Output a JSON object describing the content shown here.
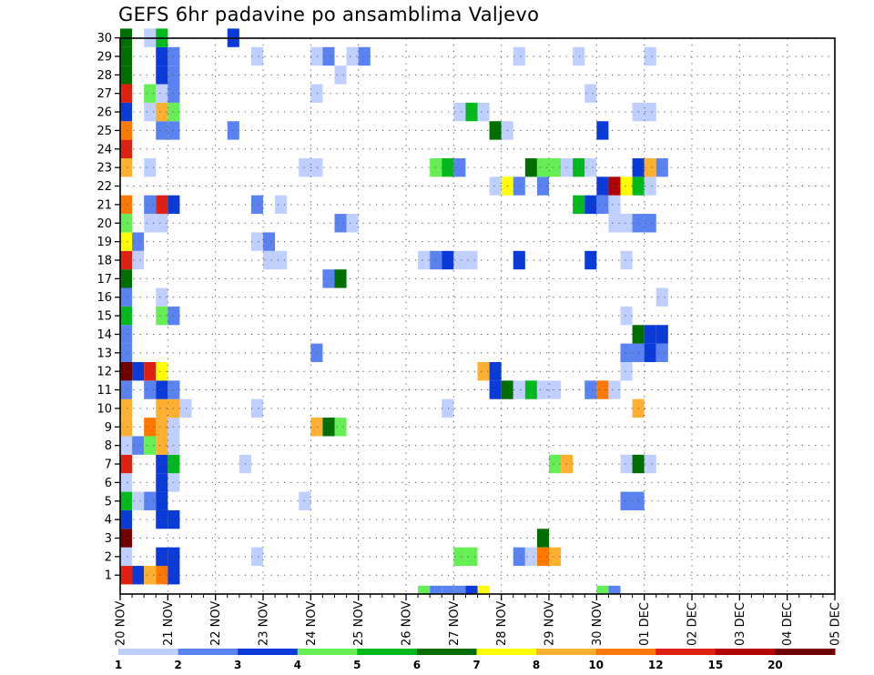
{
  "chart_data": {
    "type": "heatmap",
    "title": "GEFS 6hr padavine po ansamblima Valjevo",
    "xlabel": "",
    "ylabel": "",
    "x_tick_labels": [
      "20 NOV",
      "21 NOV",
      "22 NOV",
      "23 NOV",
      "24 NOV",
      "25 NOV",
      "26 NOV",
      "27 NOV",
      "28 NOV",
      "29 NOV",
      "30 NOV",
      "01 DEC",
      "02 DEC",
      "03 DEC",
      "04 DEC",
      "05 DEC"
    ],
    "x_range_days": [
      0,
      15
    ],
    "y_tick_labels": [
      "1",
      "2",
      "3",
      "4",
      "5",
      "6",
      "7",
      "8",
      "9",
      "10",
      "11",
      "12",
      "13",
      "14",
      "15",
      "16",
      "17",
      "18",
      "19",
      "20",
      "21",
      "22",
      "23",
      "24",
      "25",
      "26",
      "27",
      "28",
      "29",
      "30"
    ],
    "grid": true,
    "colorbar": {
      "position": "bottom",
      "labels": [
        "1",
        "2",
        "3",
        "4",
        "5",
        "6",
        "7",
        "8",
        "10",
        "12",
        "15",
        "20"
      ],
      "colors": [
        "#bfcfff",
        "#5a82f0",
        "#0a3ad8",
        "#66ee55",
        "#00b91c",
        "#006e00",
        "#ffff00",
        "#ffb030",
        "#ff7800",
        "#e02010",
        "#b00000",
        "#6e0000"
      ]
    },
    "cell_columns": 30,
    "cells": [
      [
        0,
        1,
        10
      ],
      [
        1,
        1,
        3
      ],
      [
        2,
        1,
        8
      ],
      [
        3,
        1,
        9
      ],
      [
        4,
        1,
        3
      ],
      [
        3,
        2,
        3
      ],
      [
        4,
        2,
        3
      ],
      [
        0,
        2,
        1
      ],
      [
        11,
        2,
        1
      ],
      [
        28,
        2,
        4
      ],
      [
        29,
        2,
        4
      ],
      [
        33,
        2,
        2
      ],
      [
        34,
        2,
        1
      ],
      [
        35,
        2,
        9
      ],
      [
        36,
        2,
        8
      ],
      [
        0,
        3,
        12
      ],
      [
        35,
        3,
        6
      ],
      [
        0,
        4,
        3
      ],
      [
        3,
        4,
        3
      ],
      [
        4,
        4,
        3
      ],
      [
        0,
        5,
        5
      ],
      [
        1,
        5,
        1
      ],
      [
        2,
        5,
        2
      ],
      [
        3,
        5,
        3
      ],
      [
        15,
        5,
        1
      ],
      [
        42,
        5,
        2
      ],
      [
        43,
        5,
        2
      ],
      [
        0,
        6,
        1
      ],
      [
        3,
        6,
        3
      ],
      [
        4,
        6,
        1
      ],
      [
        0,
        7,
        10
      ],
      [
        3,
        7,
        3
      ],
      [
        4,
        7,
        5
      ],
      [
        10,
        7,
        1
      ],
      [
        36,
        7,
        4
      ],
      [
        37,
        7,
        8
      ],
      [
        42,
        7,
        1
      ],
      [
        43,
        7,
        6
      ],
      [
        44,
        7,
        1
      ],
      [
        0,
        8,
        1
      ],
      [
        1,
        8,
        2
      ],
      [
        2,
        8,
        4
      ],
      [
        3,
        8,
        8
      ],
      [
        4,
        8,
        1
      ],
      [
        0,
        9,
        8
      ],
      [
        2,
        9,
        9
      ],
      [
        3,
        9,
        8
      ],
      [
        4,
        9,
        1
      ],
      [
        16,
        9,
        8
      ],
      [
        17,
        9,
        6
      ],
      [
        18,
        9,
        4
      ],
      [
        0,
        10,
        8
      ],
      [
        3,
        10,
        8
      ],
      [
        4,
        10,
        8
      ],
      [
        5,
        10,
        1
      ],
      [
        11,
        10,
        1
      ],
      [
        27,
        10,
        1
      ],
      [
        43,
        10,
        8
      ],
      [
        0,
        11,
        2
      ],
      [
        2,
        11,
        2
      ],
      [
        3,
        11,
        3
      ],
      [
        4,
        11,
        2
      ],
      [
        31,
        11,
        3
      ],
      [
        32,
        11,
        6
      ],
      [
        33,
        11,
        1
      ],
      [
        34,
        11,
        5
      ],
      [
        35,
        11,
        1
      ],
      [
        36,
        11,
        1
      ],
      [
        39,
        11,
        2
      ],
      [
        40,
        11,
        9
      ],
      [
        41,
        11,
        1
      ],
      [
        0,
        12,
        12
      ],
      [
        1,
        12,
        3
      ],
      [
        2,
        12,
        10
      ],
      [
        3,
        12,
        7
      ],
      [
        30,
        12,
        8
      ],
      [
        31,
        12,
        3
      ],
      [
        42,
        12,
        1
      ],
      [
        0,
        13,
        2
      ],
      [
        16,
        13,
        2
      ],
      [
        42,
        13,
        2
      ],
      [
        43,
        13,
        2
      ],
      [
        44,
        13,
        3
      ],
      [
        45,
        13,
        2
      ],
      [
        0,
        14,
        2
      ],
      [
        43,
        14,
        6
      ],
      [
        44,
        14,
        3
      ],
      [
        45,
        14,
        3
      ],
      [
        0,
        15,
        5
      ],
      [
        3,
        15,
        4
      ],
      [
        4,
        15,
        2
      ],
      [
        42,
        15,
        1
      ],
      [
        0,
        16,
        2
      ],
      [
        3,
        16,
        1
      ],
      [
        45,
        16,
        1
      ],
      [
        0,
        17,
        6
      ],
      [
        17,
        17,
        2
      ],
      [
        18,
        17,
        6
      ],
      [
        0,
        18,
        10
      ],
      [
        1,
        18,
        1
      ],
      [
        12,
        18,
        1
      ],
      [
        13,
        18,
        1
      ],
      [
        25,
        18,
        1
      ],
      [
        26,
        18,
        2
      ],
      [
        27,
        18,
        3
      ],
      [
        28,
        18,
        1
      ],
      [
        29,
        18,
        1
      ],
      [
        33,
        18,
        3
      ],
      [
        39,
        18,
        3
      ],
      [
        42,
        18,
        1
      ],
      [
        0,
        19,
        7
      ],
      [
        1,
        19,
        2
      ],
      [
        11,
        19,
        1
      ],
      [
        12,
        19,
        2
      ],
      [
        0,
        20,
        4
      ],
      [
        2,
        20,
        1
      ],
      [
        3,
        20,
        1
      ],
      [
        18,
        20,
        2
      ],
      [
        19,
        20,
        1
      ],
      [
        41,
        20,
        1
      ],
      [
        42,
        20,
        1
      ],
      [
        43,
        20,
        2
      ],
      [
        44,
        20,
        2
      ],
      [
        0,
        21,
        9
      ],
      [
        2,
        21,
        2
      ],
      [
        3,
        21,
        10
      ],
      [
        4,
        21,
        3
      ],
      [
        11,
        21,
        2
      ],
      [
        13,
        21,
        1
      ],
      [
        38,
        21,
        5
      ],
      [
        39,
        21,
        3
      ],
      [
        40,
        21,
        2
      ],
      [
        41,
        21,
        1
      ],
      [
        31,
        22,
        1
      ],
      [
        32,
        22,
        7
      ],
      [
        33,
        22,
        2
      ],
      [
        35,
        22,
        2
      ],
      [
        40,
        22,
        3
      ],
      [
        41,
        22,
        11
      ],
      [
        42,
        22,
        7
      ],
      [
        43,
        22,
        5
      ],
      [
        44,
        22,
        1
      ],
      [
        0,
        23,
        8
      ],
      [
        2,
        23,
        1
      ],
      [
        15,
        23,
        1
      ],
      [
        16,
        23,
        1
      ],
      [
        26,
        23,
        4
      ],
      [
        27,
        23,
        5
      ],
      [
        28,
        23,
        2
      ],
      [
        34,
        23,
        6
      ],
      [
        35,
        23,
        4
      ],
      [
        36,
        23,
        4
      ],
      [
        37,
        23,
        1
      ],
      [
        38,
        23,
        5
      ],
      [
        39,
        23,
        1
      ],
      [
        43,
        23,
        3
      ],
      [
        44,
        23,
        8
      ],
      [
        45,
        23,
        2
      ],
      [
        0,
        24,
        10
      ],
      [
        0,
        25,
        9
      ],
      [
        3,
        25,
        2
      ],
      [
        4,
        25,
        2
      ],
      [
        9,
        25,
        2
      ],
      [
        31,
        25,
        6
      ],
      [
        32,
        25,
        1
      ],
      [
        40,
        25,
        3
      ],
      [
        0,
        26,
        3
      ],
      [
        2,
        26,
        1
      ],
      [
        3,
        26,
        8
      ],
      [
        4,
        26,
        4
      ],
      [
        28,
        26,
        1
      ],
      [
        29,
        26,
        5
      ],
      [
        30,
        26,
        1
      ],
      [
        43,
        26,
        1
      ],
      [
        44,
        26,
        1
      ],
      [
        0,
        27,
        10
      ],
      [
        2,
        27,
        4
      ],
      [
        3,
        27,
        1
      ],
      [
        4,
        27,
        2
      ],
      [
        16,
        27,
        1
      ],
      [
        39,
        27,
        1
      ],
      [
        0,
        28,
        6
      ],
      [
        3,
        28,
        3
      ],
      [
        4,
        28,
        2
      ],
      [
        18,
        28,
        1
      ],
      [
        0,
        29,
        6
      ],
      [
        3,
        29,
        3
      ],
      [
        4,
        29,
        2
      ],
      [
        11,
        29,
        1
      ],
      [
        16,
        29,
        1
      ],
      [
        17,
        29,
        2
      ],
      [
        19,
        29,
        1
      ],
      [
        20,
        29,
        2
      ],
      [
        33,
        29,
        1
      ],
      [
        38,
        29,
        1
      ],
      [
        44,
        29,
        1
      ],
      [
        0,
        30,
        6
      ],
      [
        2,
        30,
        1
      ],
      [
        3,
        30,
        5
      ],
      [
        9,
        30,
        3
      ],
      [
        25,
        0,
        4
      ],
      [
        26,
        0,
        2
      ],
      [
        27,
        0,
        2
      ],
      [
        28,
        0,
        2
      ],
      [
        29,
        0,
        3
      ],
      [
        30,
        0,
        7
      ],
      [
        40,
        0,
        4
      ],
      [
        41,
        0,
        2
      ]
    ]
  }
}
